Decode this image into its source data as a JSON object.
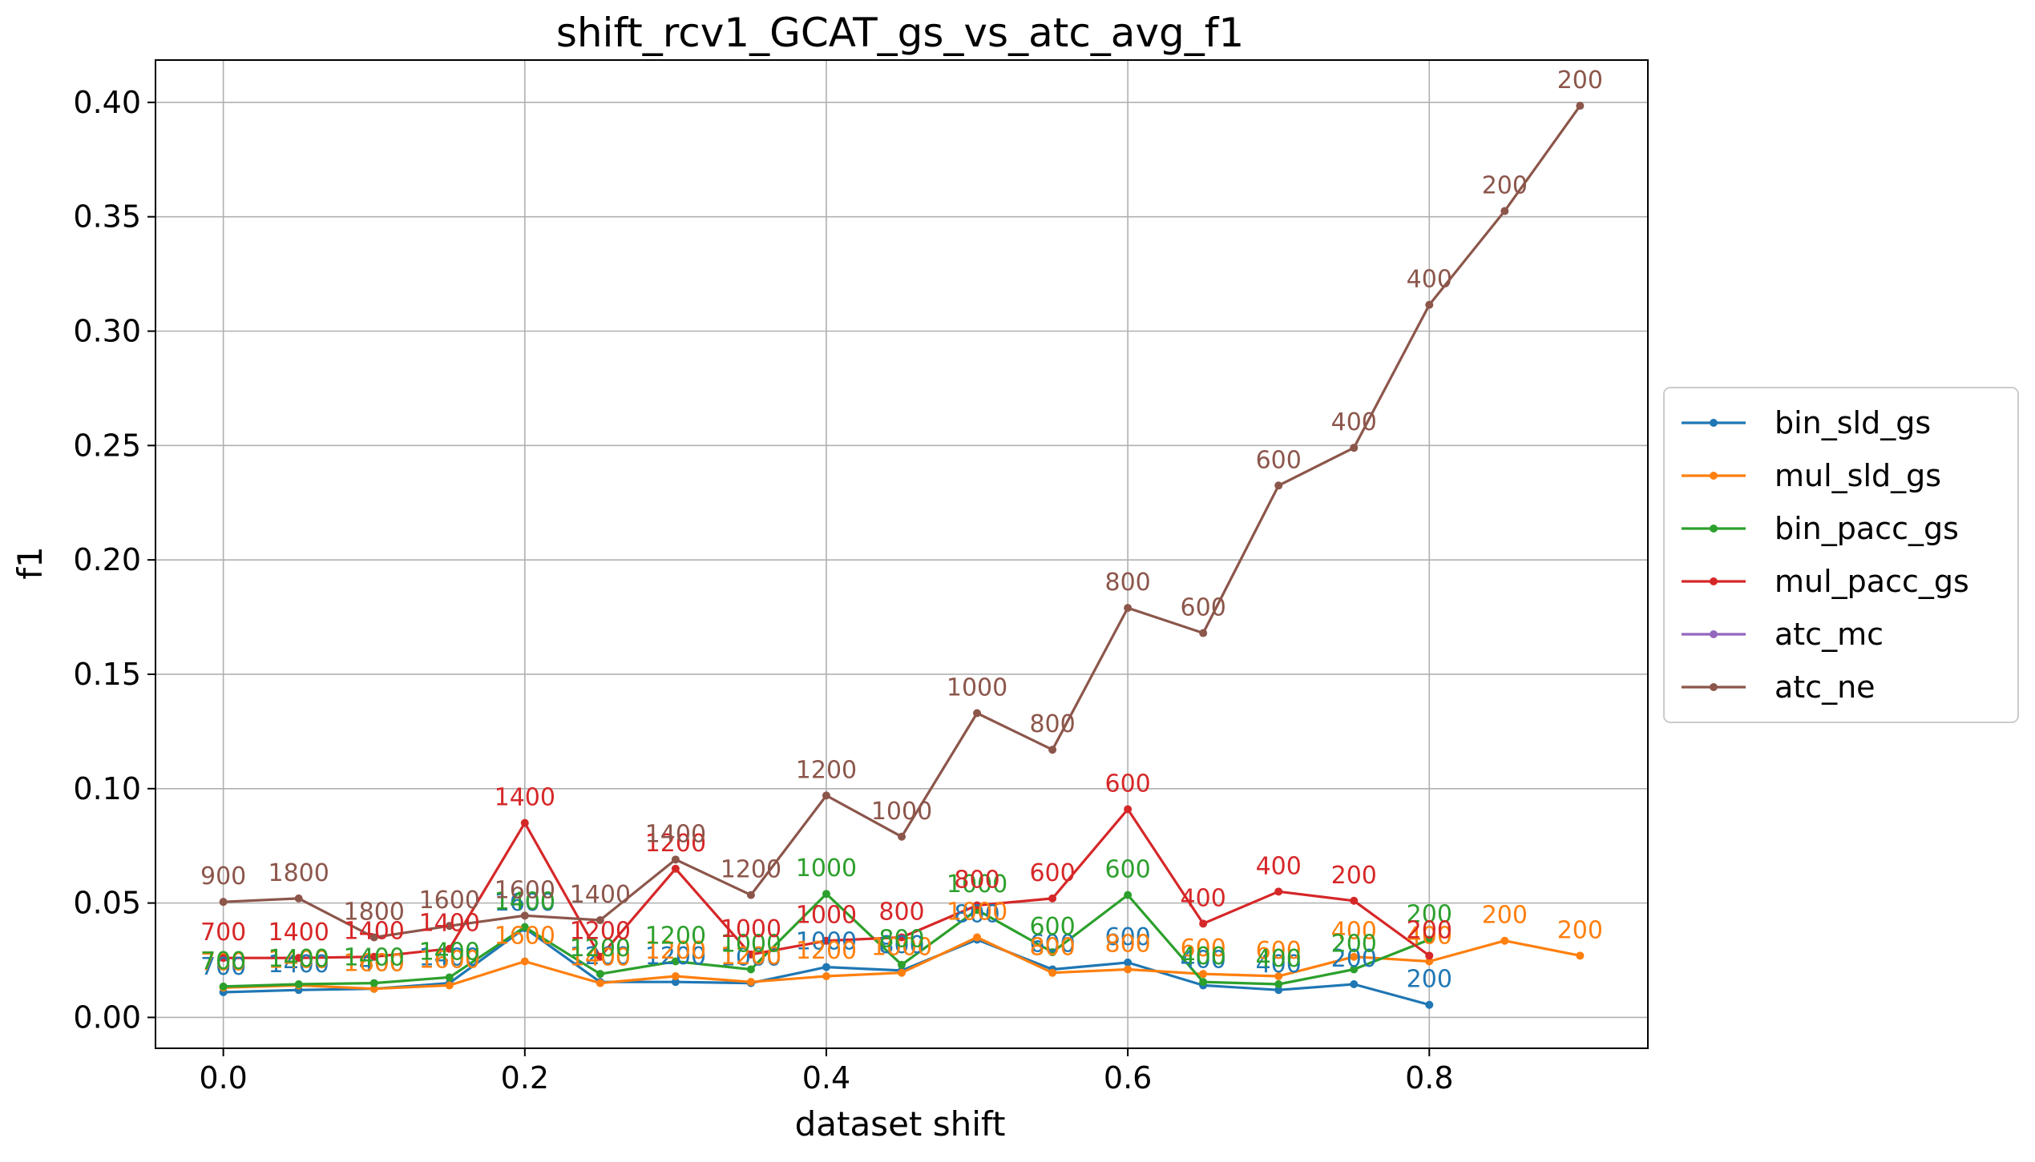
{
  "chart_data": {
    "type": "line",
    "title": "shift_rcv1_GCAT_gs_vs_atc_avg_f1",
    "xlabel": "dataset shift",
    "ylabel": "f1",
    "xlim": [
      -0.045,
      0.945
    ],
    "ylim": [
      -0.0135,
      0.4185
    ],
    "xticks": [
      "0.0",
      "0.2",
      "0.4",
      "0.6",
      "0.8"
    ],
    "yticks": [
      "0.00",
      "0.05",
      "0.10",
      "0.15",
      "0.20",
      "0.25",
      "0.30",
      "0.35",
      "0.40"
    ],
    "grid": true,
    "legend_position": "center-right, outside plot",
    "series": [
      {
        "name": "bin_sld_gs",
        "color": "#1f77b4",
        "x": [
          0.0,
          0.05,
          0.1,
          0.15,
          0.2,
          0.25,
          0.3,
          0.35,
          0.4,
          0.45,
          0.5,
          0.55,
          0.6,
          0.65,
          0.7,
          0.75,
          0.8
        ],
        "y": [
          0.011,
          0.012,
          0.0125,
          0.015,
          0.039,
          0.0155,
          0.0155,
          0.015,
          0.022,
          0.0205,
          0.034,
          0.021,
          0.024,
          0.014,
          0.012,
          0.0145,
          0.0055
        ],
        "labels": [
          "700",
          "1400",
          "1400",
          "1400",
          "1600",
          "1200",
          "1200",
          "1000",
          "1000",
          "800",
          "800",
          "600",
          "600",
          "400",
          "400",
          "200",
          "200"
        ]
      },
      {
        "name": "mul_sld_gs",
        "color": "#ff7f0e",
        "x": [
          0.0,
          0.05,
          0.1,
          0.15,
          0.2,
          0.25,
          0.3,
          0.35,
          0.4,
          0.45,
          0.5,
          0.55,
          0.6,
          0.65,
          0.7,
          0.75,
          0.8,
          0.85,
          0.9
        ],
        "y": [
          0.013,
          0.014,
          0.0125,
          0.014,
          0.0245,
          0.015,
          0.018,
          0.0155,
          0.018,
          0.0195,
          0.035,
          0.0195,
          0.021,
          0.019,
          0.018,
          0.0265,
          0.0245,
          0.0335,
          0.027
        ],
        "labels": [
          "700",
          "1400",
          "1600",
          "1600",
          "1600",
          "1400",
          "1200",
          "1200",
          "1200",
          "1000",
          "1000",
          "800",
          "800",
          "600",
          "600",
          "400",
          "400",
          "200",
          "200"
        ]
      },
      {
        "name": "bin_pacc_gs",
        "color": "#2ca02c",
        "x": [
          0.0,
          0.05,
          0.1,
          0.15,
          0.2,
          0.25,
          0.3,
          0.35,
          0.4,
          0.45,
          0.5,
          0.55,
          0.6,
          0.65,
          0.7,
          0.75,
          0.8
        ],
        "y": [
          0.0135,
          0.0145,
          0.015,
          0.0175,
          0.0395,
          0.019,
          0.0245,
          0.021,
          0.054,
          0.023,
          0.047,
          0.0285,
          0.0535,
          0.0155,
          0.0145,
          0.021,
          0.034
        ],
        "labels": [
          "700",
          "1400",
          "1400",
          "1400",
          "1400",
          "1200",
          "1200",
          "1000",
          "1000",
          "800",
          "1000",
          "600",
          "600",
          "400",
          "400",
          "200",
          "200"
        ]
      },
      {
        "name": "mul_pacc_gs",
        "color": "#d62728",
        "x": [
          0.0,
          0.05,
          0.1,
          0.15,
          0.2,
          0.25,
          0.3,
          0.35,
          0.4,
          0.45,
          0.5,
          0.55,
          0.6,
          0.65,
          0.7,
          0.75,
          0.8
        ],
        "y": [
          0.026,
          0.026,
          0.0265,
          0.03,
          0.085,
          0.0265,
          0.065,
          0.0275,
          0.0335,
          0.035,
          0.049,
          0.052,
          0.091,
          0.041,
          0.055,
          0.051,
          0.027
        ],
        "labels": [
          "700",
          "1400",
          "1400",
          "1400",
          "1400",
          "1200",
          "1200",
          "1000",
          "1000",
          "800",
          "800",
          "600",
          "600",
          "400",
          "400",
          "200",
          "200"
        ]
      },
      {
        "name": "atc_mc",
        "color": "#9467bd",
        "x": [],
        "y": [],
        "labels": []
      },
      {
        "name": "atc_ne",
        "color": "#8c564b",
        "x": [
          0.0,
          0.05,
          0.1,
          0.15,
          0.2,
          0.25,
          0.3,
          0.35,
          0.4,
          0.45,
          0.5,
          0.55,
          0.6,
          0.65,
          0.7,
          0.75,
          0.8,
          0.85,
          0.9
        ],
        "y": [
          0.0505,
          0.052,
          0.035,
          0.04,
          0.0445,
          0.0425,
          0.069,
          0.0535,
          0.097,
          0.079,
          0.133,
          0.117,
          0.179,
          0.168,
          0.2325,
          0.249,
          0.3115,
          0.3525,
          0.3985
        ],
        "labels": [
          "900",
          "1800",
          "1800",
          "1600",
          "1600",
          "1400",
          "1400",
          "1200",
          "1200",
          "1000",
          "1000",
          "800",
          "800",
          "600",
          "600",
          "400",
          "400",
          "200",
          "200"
        ]
      }
    ]
  }
}
